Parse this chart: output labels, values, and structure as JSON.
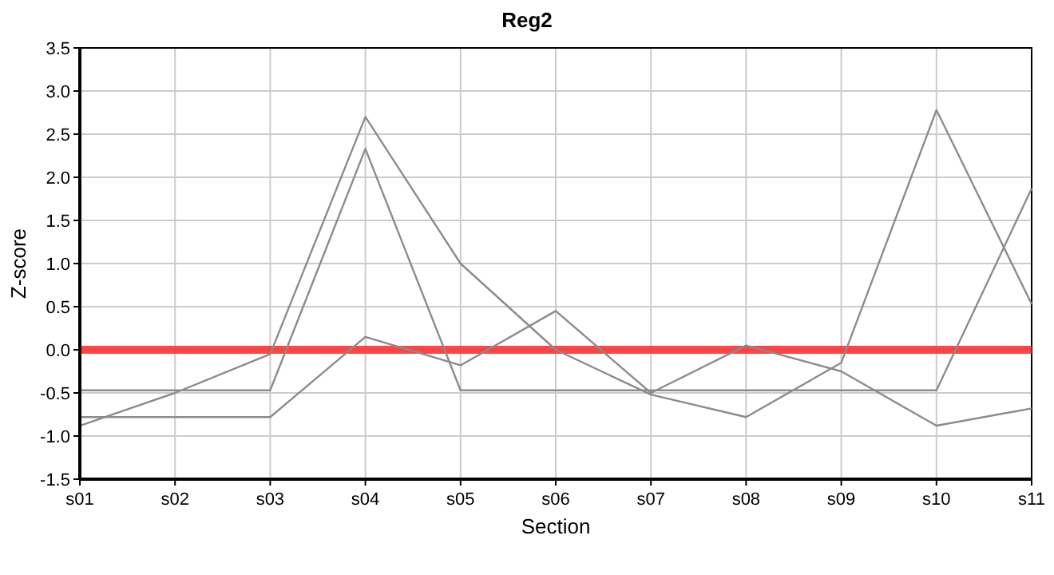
{
  "chart_data": {
    "type": "line",
    "title": "Reg2",
    "xlabel": "Section",
    "ylabel": "Z-score",
    "categories": [
      "s01",
      "s02",
      "s03",
      "s04",
      "s05",
      "s06",
      "s07",
      "s08",
      "s09",
      "s10",
      "s11"
    ],
    "series": [
      {
        "color": "#8c8c8c",
        "values": [
          -0.88,
          -0.5,
          -0.05,
          2.7,
          1.0,
          0.0,
          -0.52,
          -0.78,
          -0.15,
          2.78,
          0.53
        ]
      },
      {
        "color": "#8c8c8c",
        "values": [
          -0.47,
          -0.47,
          -0.47,
          2.33,
          -0.47,
          -0.47,
          -0.47,
          -0.47,
          -0.47,
          -0.47,
          1.87
        ]
      },
      {
        "color": "#8c8c8c",
        "values": [
          -0.78,
          -0.78,
          -0.78,
          0.15,
          -0.18,
          0.45,
          -0.5,
          0.05,
          -0.25,
          -0.88,
          -0.68
        ]
      }
    ],
    "ylim": [
      -1.5,
      3.5
    ],
    "yticks": [
      {
        "value": -1.5,
        "label": "-1.5"
      },
      {
        "value": -1,
        "label": "-1.0"
      },
      {
        "value": -0.5,
        "label": "-0.5"
      },
      {
        "value": 0,
        "label": "0.0"
      },
      {
        "value": 0.5,
        "label": "0.5"
      },
      {
        "value": 1,
        "label": "1.0"
      },
      {
        "value": 1.5,
        "label": "1.5"
      },
      {
        "value": 2,
        "label": "2.0"
      },
      {
        "value": 2.5,
        "label": "2.5"
      },
      {
        "value": 3,
        "label": "3.0"
      },
      {
        "value": 3.5,
        "label": "3.5"
      }
    ],
    "ref_lines": [
      {
        "axis": "y",
        "value": 0,
        "color": "#ff3333"
      }
    ],
    "grid": true,
    "marker": "none",
    "line_style": "solid"
  }
}
